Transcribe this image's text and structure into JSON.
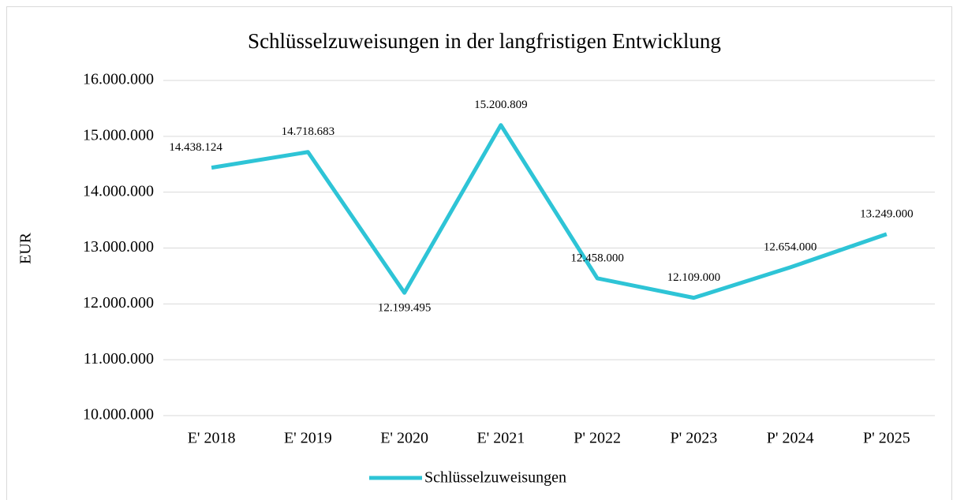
{
  "chart_data": {
    "type": "line",
    "title": "Schlüsselzuweisungen in der langfristigen Entwicklung",
    "y_label": "EUR",
    "categories": [
      "E' 2018",
      "E' 2019",
      "E' 2020",
      "E' 2021",
      "P' 2022",
      "P' 2023",
      "P' 2024",
      "P' 2025"
    ],
    "series": [
      {
        "name": "Schlüsselzuweisungen",
        "color": "#2ec4d6",
        "values": [
          14438124,
          14718683,
          12199495,
          15200809,
          12458000,
          12109000,
          12654000,
          13249000
        ],
        "value_labels": [
          "14.438.124",
          "14.718.683",
          "12.199.495",
          "15.200.809",
          "12.458.000",
          "12.109.000",
          "12.654.000",
          "13.249.000"
        ]
      }
    ],
    "ylim": [
      10000000,
      16000000
    ],
    "yticks": [
      {
        "value": 10000000,
        "label": "10.000.000"
      },
      {
        "value": 11000000,
        "label": "11.000.000"
      },
      {
        "value": 12000000,
        "label": "12.000.000"
      },
      {
        "value": 13000000,
        "label": "13.000.000"
      },
      {
        "value": 14000000,
        "label": "14.000.000"
      },
      {
        "value": 15000000,
        "label": "15.000.000"
      },
      {
        "value": 16000000,
        "label": "16.000.000"
      }
    ],
    "grid": true,
    "legend": "bottom"
  }
}
